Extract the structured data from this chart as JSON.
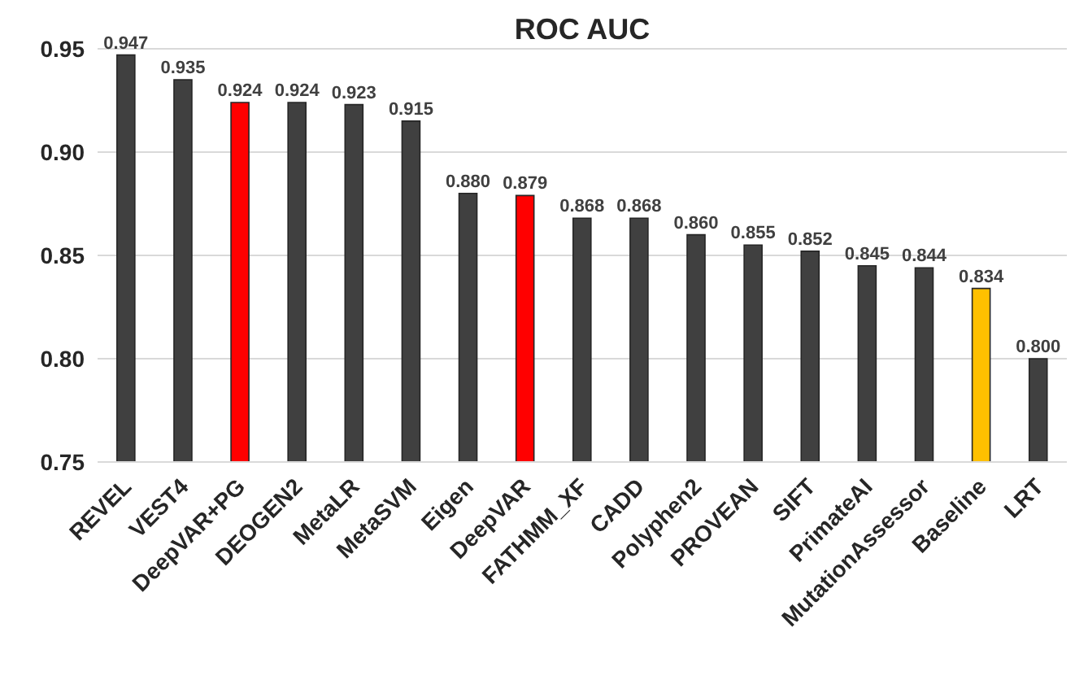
{
  "chart_data": {
    "type": "bar",
    "title": "ROC AUC",
    "categories": [
      "REVEL",
      "VEST4",
      "DeepVAR+PG",
      "DEOGEN2",
      "MetaLR",
      "MetaSVM",
      "Eigen",
      "DeepVAR",
      "FATHMM_XF",
      "CADD",
      "Polyphen2",
      "PROVEAN",
      "SIFT",
      "PrimateAI",
      "MutationAssessor",
      "Baseline",
      "LRT"
    ],
    "values": [
      0.947,
      0.935,
      0.924,
      0.924,
      0.923,
      0.915,
      0.88,
      0.879,
      0.868,
      0.868,
      0.86,
      0.855,
      0.852,
      0.845,
      0.844,
      0.834,
      0.8
    ],
    "value_labels": [
      "0.947",
      "0.935",
      "0.924",
      "0.924",
      "0.923",
      "0.915",
      "0.880",
      "0.879",
      "0.868",
      "0.868",
      "0.860",
      "0.855",
      "0.852",
      "0.845",
      "0.844",
      "0.834",
      "0.800"
    ],
    "colors": [
      "#404040",
      "#404040",
      "#ff0000",
      "#404040",
      "#404040",
      "#404040",
      "#404040",
      "#ff0000",
      "#404040",
      "#404040",
      "#404040",
      "#404040",
      "#404040",
      "#404040",
      "#404040",
      "#ffc000",
      "#404040"
    ],
    "ylim": [
      0.75,
      0.95
    ],
    "yticks": [
      {
        "value": 0.75,
        "label": "0.75"
      },
      {
        "value": 0.8,
        "label": "0.80"
      },
      {
        "value": 0.85,
        "label": "0.85"
      },
      {
        "value": 0.9,
        "label": "0.90"
      },
      {
        "value": 0.95,
        "label": "0.95"
      }
    ],
    "grid": "y"
  }
}
